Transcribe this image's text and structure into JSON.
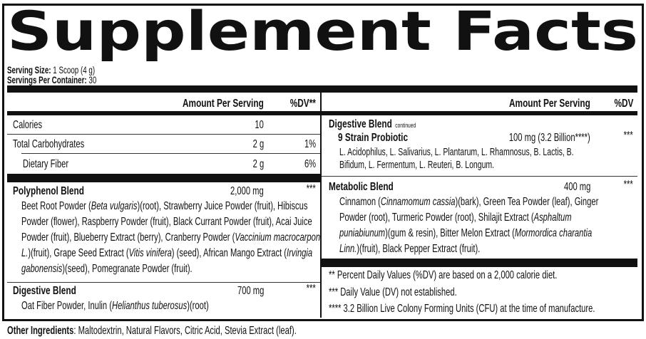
{
  "title": "Supplement Facts",
  "serving_size_label": "Serving Size:",
  "serving_size": "1 Scoop (4 g)",
  "servings_per_container_label": "Servings Per Container:",
  "servings_per_container": "30",
  "left": {
    "header_amount": "Amount Per Serving",
    "header_dv": "%DV**",
    "rows": [
      {
        "name": "Calories",
        "amount": "10",
        "dv": ""
      },
      {
        "name": "Total Carbohydrates",
        "amount": "2 g",
        "dv": "1%"
      },
      {
        "name": "Dietary Fiber",
        "amount": "2 g",
        "dv": "6%"
      }
    ],
    "polyphenol": {
      "name": "Polyphenol Blend",
      "amount": "2,000 mg",
      "dv": "***",
      "lines": [
        [
          {
            "t": "Beet Root Powder ("
          },
          {
            "t": "Beta vulgaris",
            "i": true
          },
          {
            "t": ")(root), Strawberry Juice Powder (fruit), Hibiscus"
          }
        ],
        [
          {
            "t": "Powder (flower), Raspberry Powder (fruit), Black Currant Powder (fruit), Acai Juice"
          }
        ],
        [
          {
            "t": "Powder (fruit), Blueberry Extract (berry), Cranberry Powder ("
          },
          {
            "t": "Vaccinium macrocarpon",
            "i": true
          }
        ],
        [
          {
            "t": "L.",
            "i": true
          },
          {
            "t": ")(fruit), Grape Seed Extract ("
          },
          {
            "t": "Vitis vinifera",
            "i": true
          },
          {
            "t": ")  (seed), African Mango Extract ("
          },
          {
            "t": "Irvingia",
            "i": true
          }
        ],
        [
          {
            "t": "gabonensis",
            "i": true
          },
          {
            "t": ")(seed), Pomegranate Powder (fruit)."
          }
        ]
      ]
    },
    "digestive": {
      "name": "Digestive Blend",
      "amount": "700 mg",
      "dv": "***",
      "lines": [
        [
          {
            "t": "Oat Fiber Powder, Inulin ("
          },
          {
            "t": "Helianthus tuberosus",
            "i": true
          },
          {
            "t": ")(root)"
          }
        ]
      ]
    }
  },
  "right": {
    "header_amount": "Amount Per Serving",
    "header_dv": "%DV",
    "digestive_continued": {
      "name": "Digestive Blend",
      "note": "continued"
    },
    "probiotic": {
      "name": "9 Strain Probiotic",
      "amount": "100 mg (3.2 Billion****)",
      "dv": "***",
      "lines": [
        [
          {
            "t": "L. Acidophilus, L. Salivarius, L. Plantarum, L. Rhamnosus, B. Lactis, B."
          }
        ],
        [
          {
            "t": "Bifidum, L. Fermentum, L. Reuteri, B. Longum."
          }
        ]
      ]
    },
    "metabolic": {
      "name": "Metabolic Blend",
      "amount": "400 mg",
      "dv": "***",
      "lines": [
        [
          {
            "t": "Cinnamon ("
          },
          {
            "t": "Cinnamomum cassia",
            "i": true
          },
          {
            "t": ")(bark), Green Tea Powder (leaf), Ginger"
          }
        ],
        [
          {
            "t": "Powder (root), Turmeric Powder (root), Shilajit Extract ("
          },
          {
            "t": "Asphaltum",
            "i": true
          }
        ],
        [
          {
            "t": "puniabiunum",
            "i": true
          },
          {
            "t": ")(gum & resin), Bitter Melon Extract ("
          },
          {
            "t": "Mormordica charantia",
            "i": true
          }
        ],
        [
          {
            "t": "Linn.",
            "i": true
          },
          {
            "t": ")(fruit), Black Pepper Extract (fruit)."
          }
        ]
      ]
    },
    "footnotes": [
      "** Percent Daily Values (%DV) are based on a 2,000 calorie diet.",
      "*** Daily Value (DV) not established.",
      "**** 3.2 Billion Live Colony Forming Units (CFU) at the time of manufacture."
    ]
  },
  "other_ingredients_label": "Other Ingredients",
  "other_ingredients": ": Maltodextrin, Natural Flavors, Citric Acid, Stevia Extract (leaf)."
}
